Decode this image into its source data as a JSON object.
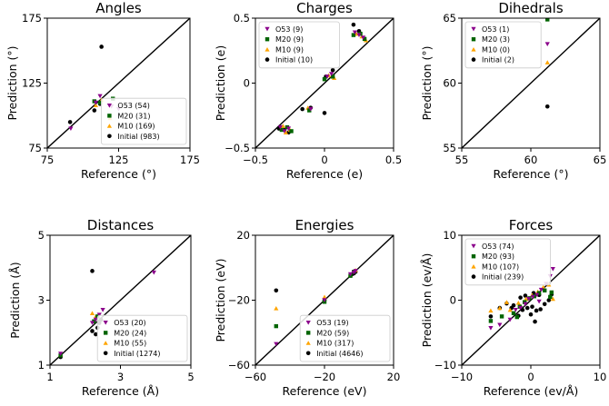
{
  "colors": {
    "O53": "#8b008b",
    "M20": "#006400",
    "M10": "#ffa500",
    "Initial": "#000000",
    "diagonal": "#000000"
  },
  "chart_data": [
    {
      "type": "scatter",
      "title": "Angles",
      "xlabel": "Reference (°)",
      "ylabel": "Prediction (°)",
      "xlim": [
        75,
        175
      ],
      "ylim": [
        75,
        175
      ],
      "xticks": [
        75,
        125,
        175
      ],
      "yticks": [
        75,
        125,
        175
      ],
      "xtick_labels": [
        "75",
        "125",
        "175"
      ],
      "ytick_labels": [
        "75",
        "125",
        "175"
      ],
      "diagonal": true,
      "legend_position": "lower-right",
      "series": [
        {
          "name": "O53 (54)",
          "key": "O53",
          "points": [
            [
              91.5,
              90
            ],
            [
              109,
              110
            ],
            [
              112,
              115
            ],
            [
              120,
              107
            ],
            [
              125,
              105
            ]
          ]
        },
        {
          "name": "M20 (31)",
          "key": "M20",
          "points": [
            [
              108,
              111
            ],
            [
              112,
              110
            ],
            [
              121,
              113
            ]
          ]
        },
        {
          "name": "M10 (169)",
          "key": "M10",
          "points": [
            [
              109,
              108
            ],
            [
              113,
              112
            ],
            [
              119,
              98
            ]
          ]
        },
        {
          "name": "Initial (983)",
          "key": "Initial",
          "points": [
            [
              91,
              95
            ],
            [
              108,
              104
            ],
            [
              112,
              109
            ],
            [
              113,
              153
            ]
          ]
        }
      ]
    },
    {
      "type": "scatter",
      "title": "Charges",
      "xlabel": "Reference (e)",
      "ylabel": "Prediction (e)",
      "xlim": [
        -0.5,
        0.5
      ],
      "ylim": [
        -0.5,
        0.5
      ],
      "xticks": [
        -0.5,
        0,
        0.5
      ],
      "yticks": [
        -0.5,
        0,
        0.5
      ],
      "xtick_labels": [
        "−0.5",
        "0",
        "0.5"
      ],
      "ytick_labels": [
        "−0.5",
        "0",
        "0.5"
      ],
      "diagonal": true,
      "legend_position": "top-left",
      "series": [
        {
          "name": "O53 (9)",
          "key": "O53",
          "points": [
            [
              -0.32,
              -0.34
            ],
            [
              -0.29,
              -0.37
            ],
            [
              -0.26,
              -0.35
            ],
            [
              -0.1,
              -0.2
            ],
            [
              0.02,
              0.05
            ],
            [
              0.05,
              0.07
            ],
            [
              0.22,
              0.39
            ],
            [
              0.25,
              0.37
            ],
            [
              0.28,
              0.35
            ]
          ]
        },
        {
          "name": "M20 (9)",
          "key": "M20",
          "points": [
            [
              -0.31,
              -0.36
            ],
            [
              -0.27,
              -0.34
            ],
            [
              -0.24,
              -0.37
            ],
            [
              -0.11,
              -0.21
            ],
            [
              0.0,
              0.03
            ],
            [
              0.06,
              0.05
            ],
            [
              0.21,
              0.37
            ],
            [
              0.26,
              0.38
            ],
            [
              0.29,
              0.34
            ]
          ]
        },
        {
          "name": "M10 (9)",
          "key": "M10",
          "points": [
            [
              -0.3,
              -0.33
            ],
            [
              -0.28,
              -0.38
            ],
            [
              -0.25,
              -0.36
            ],
            [
              -0.12,
              -0.19
            ],
            [
              0.03,
              0.06
            ],
            [
              0.07,
              0.04
            ],
            [
              0.23,
              0.38
            ],
            [
              0.27,
              0.36
            ],
            [
              0.3,
              0.33
            ]
          ]
        },
        {
          "name": "Initial (10)",
          "key": "Initial",
          "points": [
            [
              -0.33,
              -0.35
            ],
            [
              -0.29,
              -0.36
            ],
            [
              -0.26,
              -0.38
            ],
            [
              -0.16,
              -0.2
            ],
            [
              -0.1,
              -0.19
            ],
            [
              0.0,
              -0.23
            ],
            [
              0.01,
              0.05
            ],
            [
              0.06,
              0.1
            ],
            [
              0.21,
              0.45
            ],
            [
              0.25,
              0.4
            ]
          ]
        }
      ]
    },
    {
      "type": "scatter",
      "title": "Dihedrals",
      "xlabel": "Reference (°)",
      "ylabel": "Prediction (°)",
      "xlim": [
        55,
        65
      ],
      "ylim": [
        55,
        65
      ],
      "xticks": [
        55,
        60,
        65
      ],
      "yticks": [
        55,
        60,
        65
      ],
      "xtick_labels": [
        "55",
        "60",
        "65"
      ],
      "ytick_labels": [
        "55",
        "60",
        "65"
      ],
      "diagonal": true,
      "legend_position": "top-left",
      "series": [
        {
          "name": "O53 (1)",
          "key": "O53",
          "points": [
            [
              61.2,
              63
            ]
          ]
        },
        {
          "name": "M20 (3)",
          "key": "M20",
          "points": [
            [
              61.2,
              64.9
            ]
          ]
        },
        {
          "name": "M10 (0)",
          "key": "M10",
          "points": [
            [
              61.2,
              61.6
            ]
          ]
        },
        {
          "name": "Initial (2)",
          "key": "Initial",
          "points": [
            [
              61.2,
              58.2
            ]
          ]
        }
      ]
    },
    {
      "type": "scatter",
      "title": "Distances",
      "xlabel": "Reference (Å)",
      "ylabel": "Prediction (Å)",
      "xlim": [
        1,
        5
      ],
      "ylim": [
        1,
        5
      ],
      "xticks": [
        1,
        3,
        5
      ],
      "yticks": [
        1,
        3,
        5
      ],
      "xtick_labels": [
        "1",
        "3",
        "5"
      ],
      "ytick_labels": [
        "1",
        "3",
        "5"
      ],
      "diagonal": true,
      "legend_position": "lower-right",
      "series": [
        {
          "name": "O53 (20)",
          "key": "O53",
          "points": [
            [
              1.3,
              1.35
            ],
            [
              2.2,
              2.3
            ],
            [
              2.3,
              2.4
            ],
            [
              2.4,
              2.55
            ],
            [
              2.5,
              2.7
            ],
            [
              3.95,
              3.85
            ]
          ]
        },
        {
          "name": "M20 (24)",
          "key": "M20",
          "points": [
            [
              1.3,
              1.3
            ],
            [
              2.25,
              2.35
            ],
            [
              2.35,
              2.5
            ]
          ]
        },
        {
          "name": "M10 (55)",
          "key": "M10",
          "points": [
            [
              1.3,
              1.32
            ],
            [
              2.2,
              2.6
            ],
            [
              2.3,
              2.5
            ]
          ]
        },
        {
          "name": "Initial (1274)",
          "key": "Initial",
          "points": [
            [
              1.3,
              1.25
            ],
            [
              2.2,
              3.9
            ],
            [
              2.2,
              2.05
            ],
            [
              2.3,
              1.95
            ],
            [
              2.35,
              2.15
            ],
            [
              2.4,
              2.3
            ],
            [
              2.45,
              2.4
            ]
          ]
        }
      ]
    },
    {
      "type": "scatter",
      "title": "Energies",
      "xlabel": "Reference (eV)",
      "ylabel": "Prediction (eV)",
      "xlim": [
        -60,
        20
      ],
      "ylim": [
        -60,
        20
      ],
      "xticks": [
        -60,
        -20,
        20
      ],
      "yticks": [
        -60,
        -20,
        20
      ],
      "xtick_labels": [
        "−60",
        "−20",
        "20"
      ],
      "ytick_labels": [
        "−60",
        "−20",
        "20"
      ],
      "diagonal": true,
      "legend_position": "lower-right",
      "series": [
        {
          "name": "O53 (19)",
          "key": "O53",
          "points": [
            [
              -48,
              -47
            ],
            [
              -20,
              -20
            ],
            [
              -5,
              -4
            ],
            [
              -3,
              -3
            ],
            [
              -2,
              -2
            ]
          ]
        },
        {
          "name": "M20 (59)",
          "key": "M20",
          "points": [
            [
              -48,
              -36
            ],
            [
              -20,
              -21
            ],
            [
              -5,
              -5
            ],
            [
              -3,
              -2.5
            ]
          ]
        },
        {
          "name": "M10 (317)",
          "key": "M10",
          "points": [
            [
              -48,
              -25
            ],
            [
              -20,
              -18
            ],
            [
              -5,
              -4.5
            ],
            [
              -2,
              -1.5
            ]
          ]
        },
        {
          "name": "Initial (4646)",
          "key": "Initial",
          "points": [
            [
              -48,
              -14
            ],
            [
              -20,
              -20
            ],
            [
              -4,
              -4
            ],
            [
              -3,
              -3.5
            ],
            [
              -2,
              -2.5
            ]
          ]
        }
      ]
    },
    {
      "type": "scatter",
      "title": "Forces",
      "xlabel": "Reference (ev/Å)",
      "ylabel": "Prediction (ev/Å)",
      "xlim": [
        -10,
        10
      ],
      "ylim": [
        -10,
        10
      ],
      "xticks": [
        -10,
        0,
        10
      ],
      "yticks": [
        -10,
        0,
        10
      ],
      "xtick_labels": [
        "−10",
        "0",
        "10"
      ],
      "ytick_labels": [
        "−10",
        "0",
        "10"
      ],
      "diagonal": true,
      "legend_position": "top-left",
      "series": [
        {
          "name": "O53 (74)",
          "key": "O53",
          "points": [
            [
              -5.8,
              -4.3
            ],
            [
              -4.5,
              -3.8
            ],
            [
              -3,
              -3
            ],
            [
              -2.2,
              -1.5
            ],
            [
              -1.5,
              -1.2
            ],
            [
              -0.8,
              -0.6
            ],
            [
              -0.3,
              0.2
            ],
            [
              0.3,
              0.5
            ],
            [
              0.9,
              0.8
            ],
            [
              1.5,
              1.6
            ],
            [
              2.2,
              2.5
            ],
            [
              3.2,
              4.8
            ],
            [
              2.8,
              3.7
            ],
            [
              1.2,
              -0.2
            ]
          ]
        },
        {
          "name": "M20 (93)",
          "key": "M20",
          "points": [
            [
              -5.8,
              -3.2
            ],
            [
              -4.2,
              -2.5
            ],
            [
              -2.5,
              -2
            ],
            [
              -1.6,
              -1.0
            ],
            [
              -0.9,
              -0.3
            ],
            [
              -0.2,
              0.3
            ],
            [
              0.5,
              0.6
            ],
            [
              1.2,
              1.1
            ],
            [
              2,
              1.5
            ],
            [
              2.8,
              0.5
            ],
            [
              3,
              1.2
            ],
            [
              -2,
              -2.6
            ]
          ]
        },
        {
          "name": "M10 (107)",
          "key": "M10",
          "points": [
            [
              -5.8,
              -1.6
            ],
            [
              -4.5,
              -1.2
            ],
            [
              -3.0,
              -1.5
            ],
            [
              -1.8,
              -0.4
            ],
            [
              -0.7,
              0.2
            ],
            [
              0.2,
              0.8
            ],
            [
              1,
              1.3
            ],
            [
              1.8,
              2
            ],
            [
              2.6,
              2.4
            ],
            [
              3.2,
              0.2
            ],
            [
              -3.5,
              -0.3
            ]
          ]
        },
        {
          "name": "Initial (239)",
          "key": "Initial",
          "points": [
            [
              -5.8,
              -2.5
            ],
            [
              -4.5,
              -1.2
            ],
            [
              -3.5,
              -0.5
            ],
            [
              -2.5,
              -0.8
            ],
            [
              -1.8,
              -2.4
            ],
            [
              -1.2,
              -1.5
            ],
            [
              -0.5,
              -1.2
            ],
            [
              0.2,
              -1
            ],
            [
              0.8,
              -1.6
            ],
            [
              1.4,
              -1.4
            ],
            [
              2,
              -0.6
            ],
            [
              2.6,
              0
            ],
            [
              3,
              0.9
            ],
            [
              -0.8,
              0.7
            ],
            [
              0.4,
              1.1
            ],
            [
              1.2,
              0.8
            ],
            [
              -1.5,
              0.4
            ],
            [
              -2.8,
              -1.2
            ],
            [
              0,
              -2.2
            ],
            [
              0.6,
              -3.3
            ]
          ]
        }
      ]
    }
  ]
}
